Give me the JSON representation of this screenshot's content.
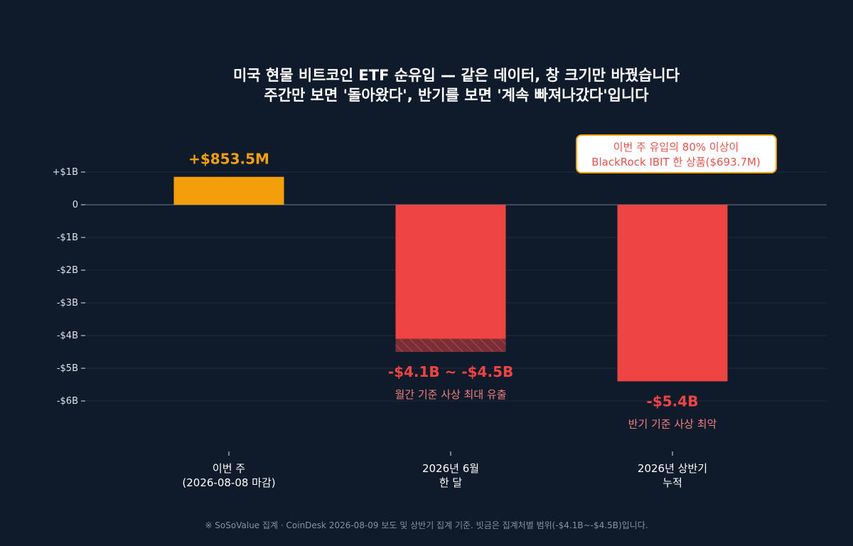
{
  "chart_data": {
    "type": "bar",
    "title": [
      "미국 현물 비트코인 ETF 순유입 — 같은 데이터, 창 크기만 바꿨습니다",
      "주간만 보면 '돌아왔다', 반기를 보면 '계속 빠져나갔다'입니다"
    ],
    "categories": [
      [
        "이번 주",
        "(2026-08-08 마감)"
      ],
      [
        "2026년 6월",
        "한 달"
      ],
      [
        "2026년 상반기",
        "누적"
      ]
    ],
    "values": [
      0.8535,
      -4.1,
      -5.4
    ],
    "range_band": {
      "category_index": 1,
      "low": -4.5,
      "high": -4.1
    },
    "value_labels": [
      "+$853.5M",
      "-$4.1B ~ -$4.5B",
      "-$5.4B"
    ],
    "sub_labels": [
      "",
      "월간 기준 사상 최대 유출",
      "반기 기준 사상 최악"
    ],
    "annotation": [
      "이번 주 유입의 80% 이상이",
      "BlackRock IBIT 한 상품($693.7M)"
    ],
    "yticks": [
      1,
      0,
      -1,
      -2,
      -3,
      -4,
      -5,
      -6
    ],
    "ytick_labels": [
      "+$1B",
      "0",
      "-$1B",
      "-$2B",
      "-$3B",
      "-$4B",
      "-$5B",
      "-$6B"
    ],
    "ylim": [
      -6.5,
      2.0
    ],
    "grid": true,
    "colors": {
      "positive": "#f59e0b",
      "negative": "#ef4444",
      "band": "#7a2e35",
      "annotation_border": "#f5a00f",
      "background": "#0f1a2a"
    },
    "footer": "※ SoSoValue 집계 · CoinDesk 2026-08-09 보도 및 상반기 집계 기준. 빗금은 집계처별 범위(-$4.1B~-$4.5B)입니다."
  }
}
